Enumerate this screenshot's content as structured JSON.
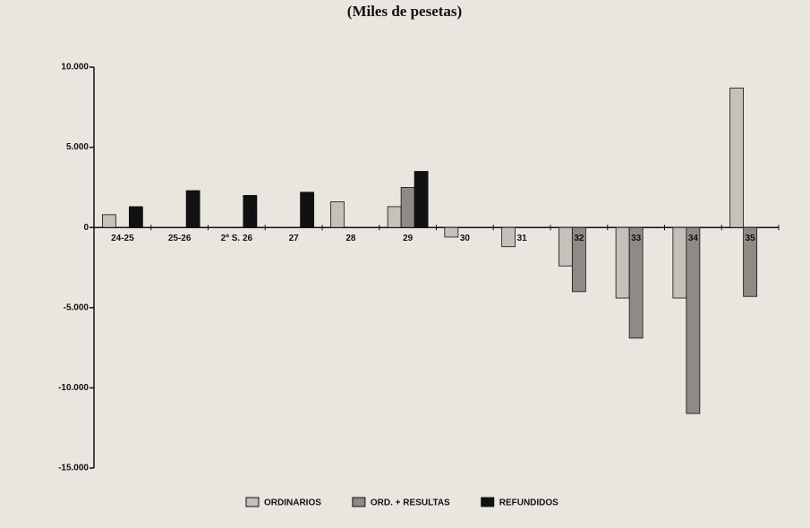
{
  "chart_data": {
    "type": "bar",
    "subtitle": "(Miles de pesetas)",
    "categories": [
      "24-25",
      "25-26",
      "2ª S. 26",
      "27",
      "28",
      "29",
      "30",
      "31",
      "32",
      "33",
      "34",
      "35"
    ],
    "series": [
      {
        "name": "ORDINARIOS",
        "color": "#c4c1bb",
        "values": [
          800,
          null,
          null,
          null,
          1600,
          1300,
          -600,
          -1200,
          -2400,
          -4400,
          -4400,
          8700
        ]
      },
      {
        "name": "ORD. + RESULTAS",
        "color": "#8e8b86",
        "values": [
          null,
          null,
          null,
          null,
          null,
          2500,
          null,
          null,
          -4000,
          -6900,
          -11600,
          -4300
        ]
      },
      {
        "name": "REFUNDIDOS",
        "color": "#111111",
        "values": [
          1300,
          2300,
          2000,
          2200,
          null,
          3500,
          null,
          null,
          null,
          null,
          null,
          null
        ]
      }
    ],
    "ylim": [
      -15000,
      10000
    ],
    "yticks": [
      {
        "value": 10000,
        "label": "10.000"
      },
      {
        "value": 5000,
        "label": "5.000"
      },
      0,
      {
        "value": -5000,
        "label": "-5.000"
      },
      {
        "value": -10000,
        "label": "-10.000"
      },
      {
        "value": -15000,
        "label": "-15.000"
      }
    ]
  }
}
